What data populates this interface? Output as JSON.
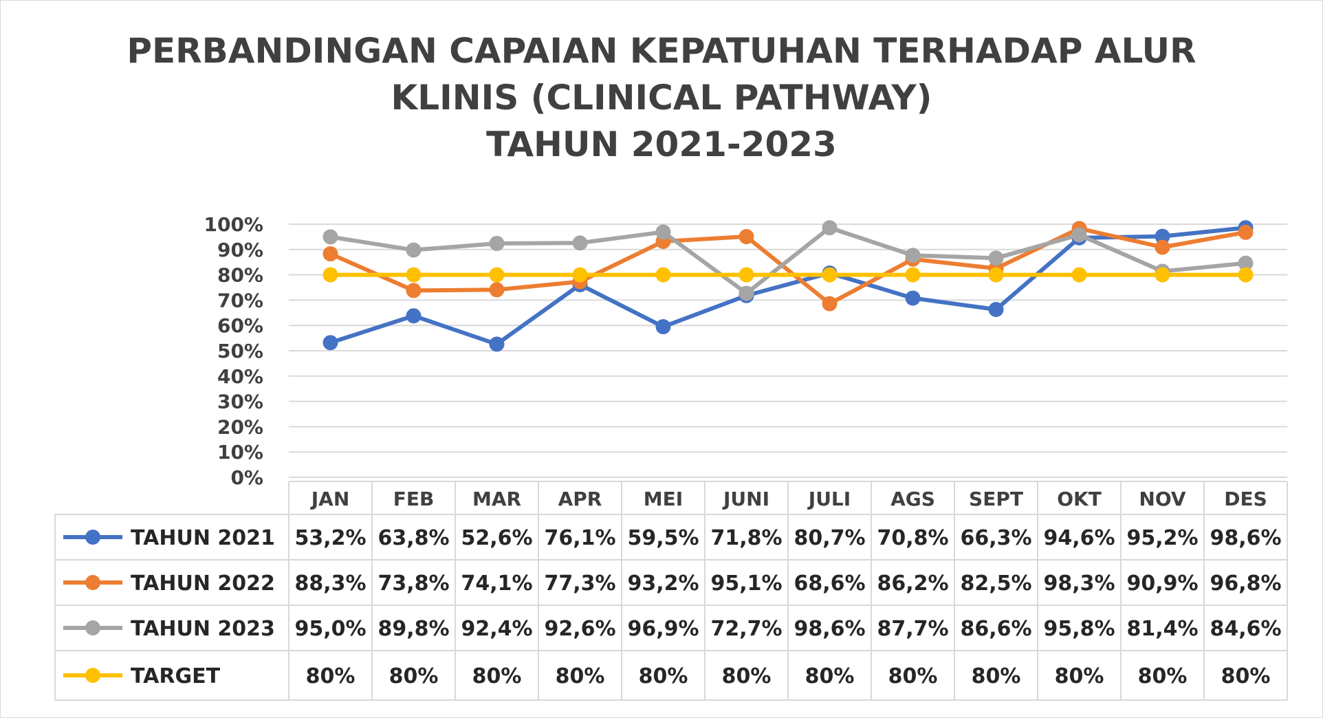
{
  "title_lines": [
    "PERBANDINGAN CAPAIAN KEPATUHAN TERHADAP ALUR",
    "KLINIS (CLINICAL PATHWAY)",
    "TAHUN 2021-2023"
  ],
  "chart_data": {
    "type": "line",
    "title": "PERBANDINGAN CAPAIAN KEPATUHAN TERHADAP ALUR KLINIS (CLINICAL PATHWAY) TAHUN 2021-2023",
    "categories": [
      "JAN",
      "FEB",
      "MAR",
      "APR",
      "MEI",
      "JUNI",
      "JULI",
      "AGS",
      "SEPT",
      "OKT",
      "NOV",
      "DES"
    ],
    "ylim": [
      0,
      100
    ],
    "yticks": [
      "0%",
      "10%",
      "20%",
      "30%",
      "40%",
      "50%",
      "60%",
      "70%",
      "80%",
      "90%",
      "100%"
    ],
    "grid": true,
    "legend": "data table below chart",
    "series": [
      {
        "name": "TAHUN 2021",
        "color": "#4472C4",
        "values": [
          53.2,
          63.8,
          52.6,
          76.1,
          59.5,
          71.8,
          80.7,
          70.8,
          66.3,
          94.6,
          95.2,
          98.6
        ],
        "labels": [
          "53,2%",
          "63,8%",
          "52,6%",
          "76,1%",
          "59,5%",
          "71,8%",
          "80,7%",
          "70,8%",
          "66,3%",
          "94,6%",
          "95,2%",
          "98,6%"
        ]
      },
      {
        "name": "TAHUN 2022",
        "color": "#ED7D31",
        "values": [
          88.3,
          73.8,
          74.1,
          77.3,
          93.2,
          95.1,
          68.6,
          86.2,
          82.5,
          98.3,
          90.9,
          96.8
        ],
        "labels": [
          "88,3%",
          "73,8%",
          "74,1%",
          "77,3%",
          "93,2%",
          "95,1%",
          "68,6%",
          "86,2%",
          "82,5%",
          "98,3%",
          "90,9%",
          "96,8%"
        ]
      },
      {
        "name": "TAHUN 2023",
        "color": "#A5A5A5",
        "values": [
          95.0,
          89.8,
          92.4,
          92.6,
          96.9,
          72.7,
          98.6,
          87.7,
          86.6,
          95.8,
          81.4,
          84.6
        ],
        "labels": [
          "95,0%",
          "89,8%",
          "92,4%",
          "92,6%",
          "96,9%",
          "72,7%",
          "98,6%",
          "87,7%",
          "86,6%",
          "95,8%",
          "81,4%",
          "84,6%"
        ]
      },
      {
        "name": "TARGET",
        "color": "#FFC000",
        "values": [
          80,
          80,
          80,
          80,
          80,
          80,
          80,
          80,
          80,
          80,
          80,
          80
        ],
        "labels": [
          "80%",
          "80%",
          "80%",
          "80%",
          "80%",
          "80%",
          "80%",
          "80%",
          "80%",
          "80%",
          "80%",
          "80%"
        ]
      }
    ]
  }
}
